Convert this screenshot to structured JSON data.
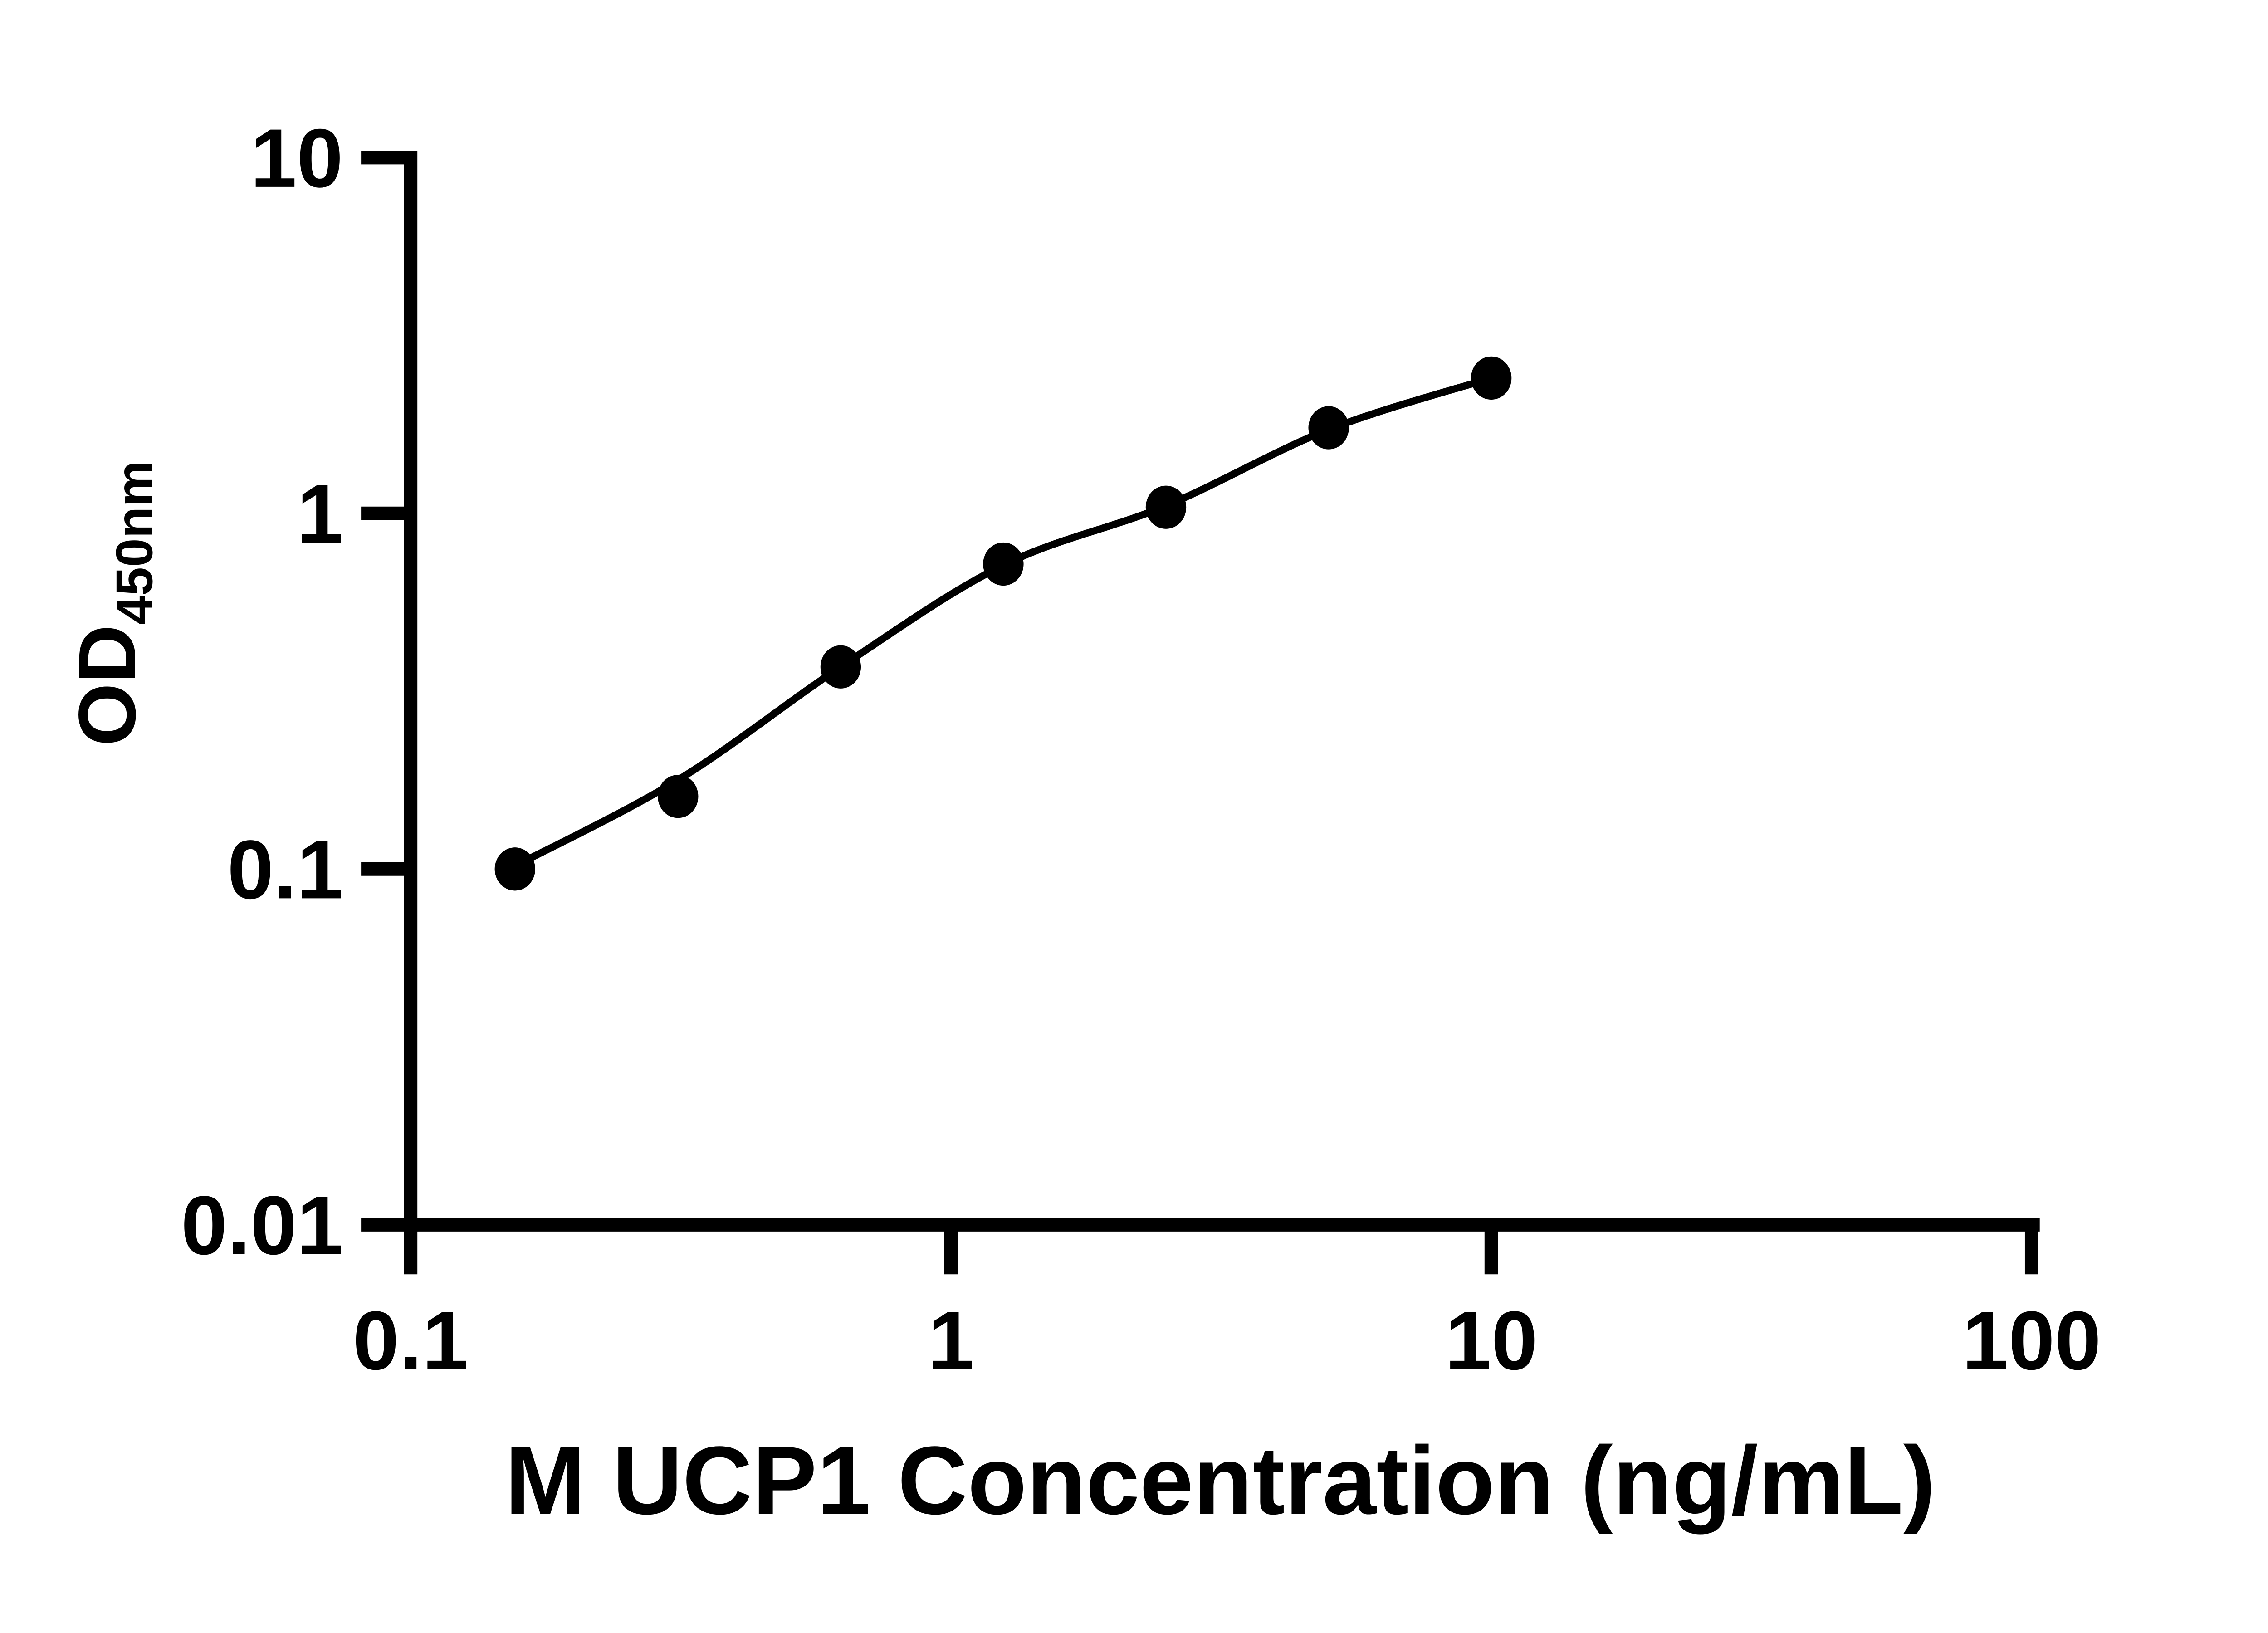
{
  "chart_data": {
    "type": "scatter",
    "title": "",
    "xlabel": "M UCP1 Concentration (ng/mL)",
    "ylabel_main": "OD",
    "ylabel_sub": "450nm",
    "x_scale": "log",
    "y_scale": "log",
    "xlim": [
      0.1,
      100
    ],
    "ylim": [
      0.01,
      10
    ],
    "x_ticks": [
      0.1,
      1,
      10,
      100
    ],
    "x_tick_labels": [
      "0.1",
      "1",
      "10",
      "100"
    ],
    "y_ticks": [
      0.01,
      0.1,
      1,
      10
    ],
    "y_tick_labels": [
      "0.01",
      "0.1",
      "1",
      "10"
    ],
    "grid": false,
    "legend": false,
    "x": [
      0.156,
      0.3125,
      0.625,
      1.25,
      2.5,
      5,
      10
    ],
    "y": [
      0.1,
      0.16,
      0.37,
      0.72,
      1.04,
      1.74,
      2.4
    ],
    "fit_curve": [
      [
        0.156,
        0.102
      ],
      [
        0.3125,
        0.178
      ],
      [
        0.625,
        0.37
      ],
      [
        1.25,
        0.715
      ],
      [
        2.5,
        1.05
      ],
      [
        5,
        1.72
      ],
      [
        10,
        2.4
      ]
    ],
    "marker_color": "#000000",
    "line_color": "#000000",
    "background_color": "#ffffff"
  }
}
